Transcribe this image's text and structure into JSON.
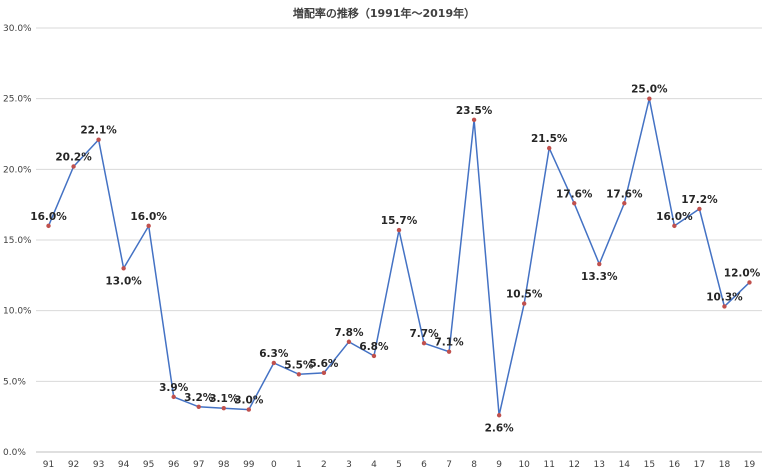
{
  "chart_data": {
    "type": "line",
    "title": "増配率の推移（1991年〜2019年）",
    "xlabel": "",
    "ylabel": "",
    "ylim": [
      0,
      30
    ],
    "y_ticks": [
      "0.0%",
      "5.0%",
      "10.0%",
      "15.0%",
      "20.0%",
      "25.0%",
      "30.0%"
    ],
    "grid": true,
    "legend": "none",
    "categories": [
      "91",
      "92",
      "93",
      "94",
      "95",
      "96",
      "97",
      "98",
      "99",
      "0",
      "1",
      "2",
      "3",
      "4",
      "5",
      "6",
      "7",
      "8",
      "9",
      "10",
      "11",
      "12",
      "13",
      "14",
      "15",
      "16",
      "17",
      "18",
      "19"
    ],
    "series": [
      {
        "values": [
          16.0,
          20.2,
          22.1,
          13.0,
          16.0,
          3.9,
          3.2,
          3.1,
          3.0,
          6.3,
          5.5,
          5.6,
          7.8,
          6.8,
          15.7,
          7.7,
          7.1,
          23.5,
          2.6,
          10.5,
          21.5,
          17.6,
          13.3,
          17.6,
          25.0,
          16.0,
          17.2,
          10.3,
          12.0
        ],
        "labels": [
          "16.0%",
          "20.2%",
          "22.1%",
          "13.0%",
          "16.0%",
          "3.9%",
          "3.2%",
          "3.1%",
          "3.0%",
          "6.3%",
          "5.5%",
          "5.6%",
          "7.8%",
          "6.8%",
          "15.7%",
          "7.7%",
          "7.1%",
          "23.5%",
          "2.6%",
          "10.5%",
          "21.5%",
          "17.6%",
          "13.3%",
          "17.6%",
          "25.0%",
          "16.0%",
          "17.2%",
          "10.3%",
          "12.0%"
        ]
      }
    ],
    "colors": {
      "line": "#4472c4",
      "marker": "#c0504d"
    }
  }
}
